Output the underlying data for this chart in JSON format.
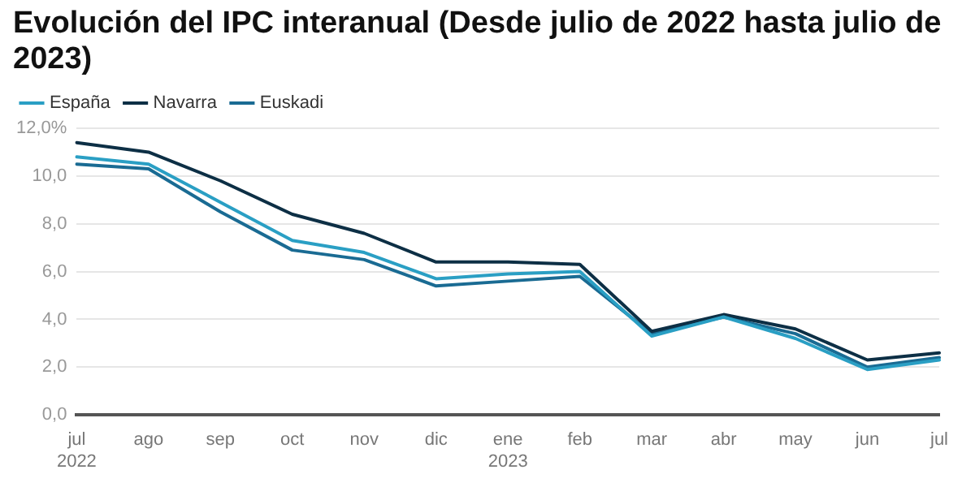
{
  "chart_data": {
    "type": "line",
    "title": "Evolución del IPC interanual (Desde julio de 2022 hasta julio de 2023)",
    "categories": [
      "jul 2022",
      "ago",
      "sep",
      "oct",
      "nov",
      "dic",
      "ene 2023",
      "feb",
      "mar",
      "abr",
      "may",
      "jun",
      "jul"
    ],
    "series": [
      {
        "name": "España",
        "color": "#2a9fc4",
        "values": [
          10.8,
          10.5,
          8.9,
          7.3,
          6.8,
          5.7,
          5.9,
          6.0,
          3.3,
          4.1,
          3.2,
          1.9,
          2.3
        ]
      },
      {
        "name": "Navarra",
        "color": "#0d2f45",
        "values": [
          11.4,
          11.0,
          9.8,
          8.4,
          7.6,
          6.4,
          6.4,
          6.3,
          3.5,
          4.2,
          3.6,
          2.3,
          2.6
        ]
      },
      {
        "name": "Euskadi",
        "color": "#1a6b93",
        "values": [
          10.5,
          10.3,
          8.5,
          6.9,
          6.5,
          5.4,
          5.6,
          5.8,
          3.4,
          4.1,
          3.4,
          2.0,
          2.4
        ]
      }
    ],
    "ylim": [
      0,
      12
    ],
    "yticks": [
      {
        "value": 0,
        "label": "0,0"
      },
      {
        "value": 2,
        "label": "2,0"
      },
      {
        "value": 4,
        "label": "4,0"
      },
      {
        "value": 6,
        "label": "6,0"
      },
      {
        "value": 8,
        "label": "8,0"
      },
      {
        "value": 10,
        "label": "10,0"
      },
      {
        "value": 12,
        "label": "12,0%"
      }
    ],
    "grid": "y",
    "legend": "top left",
    "marker": "none",
    "line_style": "solid"
  }
}
